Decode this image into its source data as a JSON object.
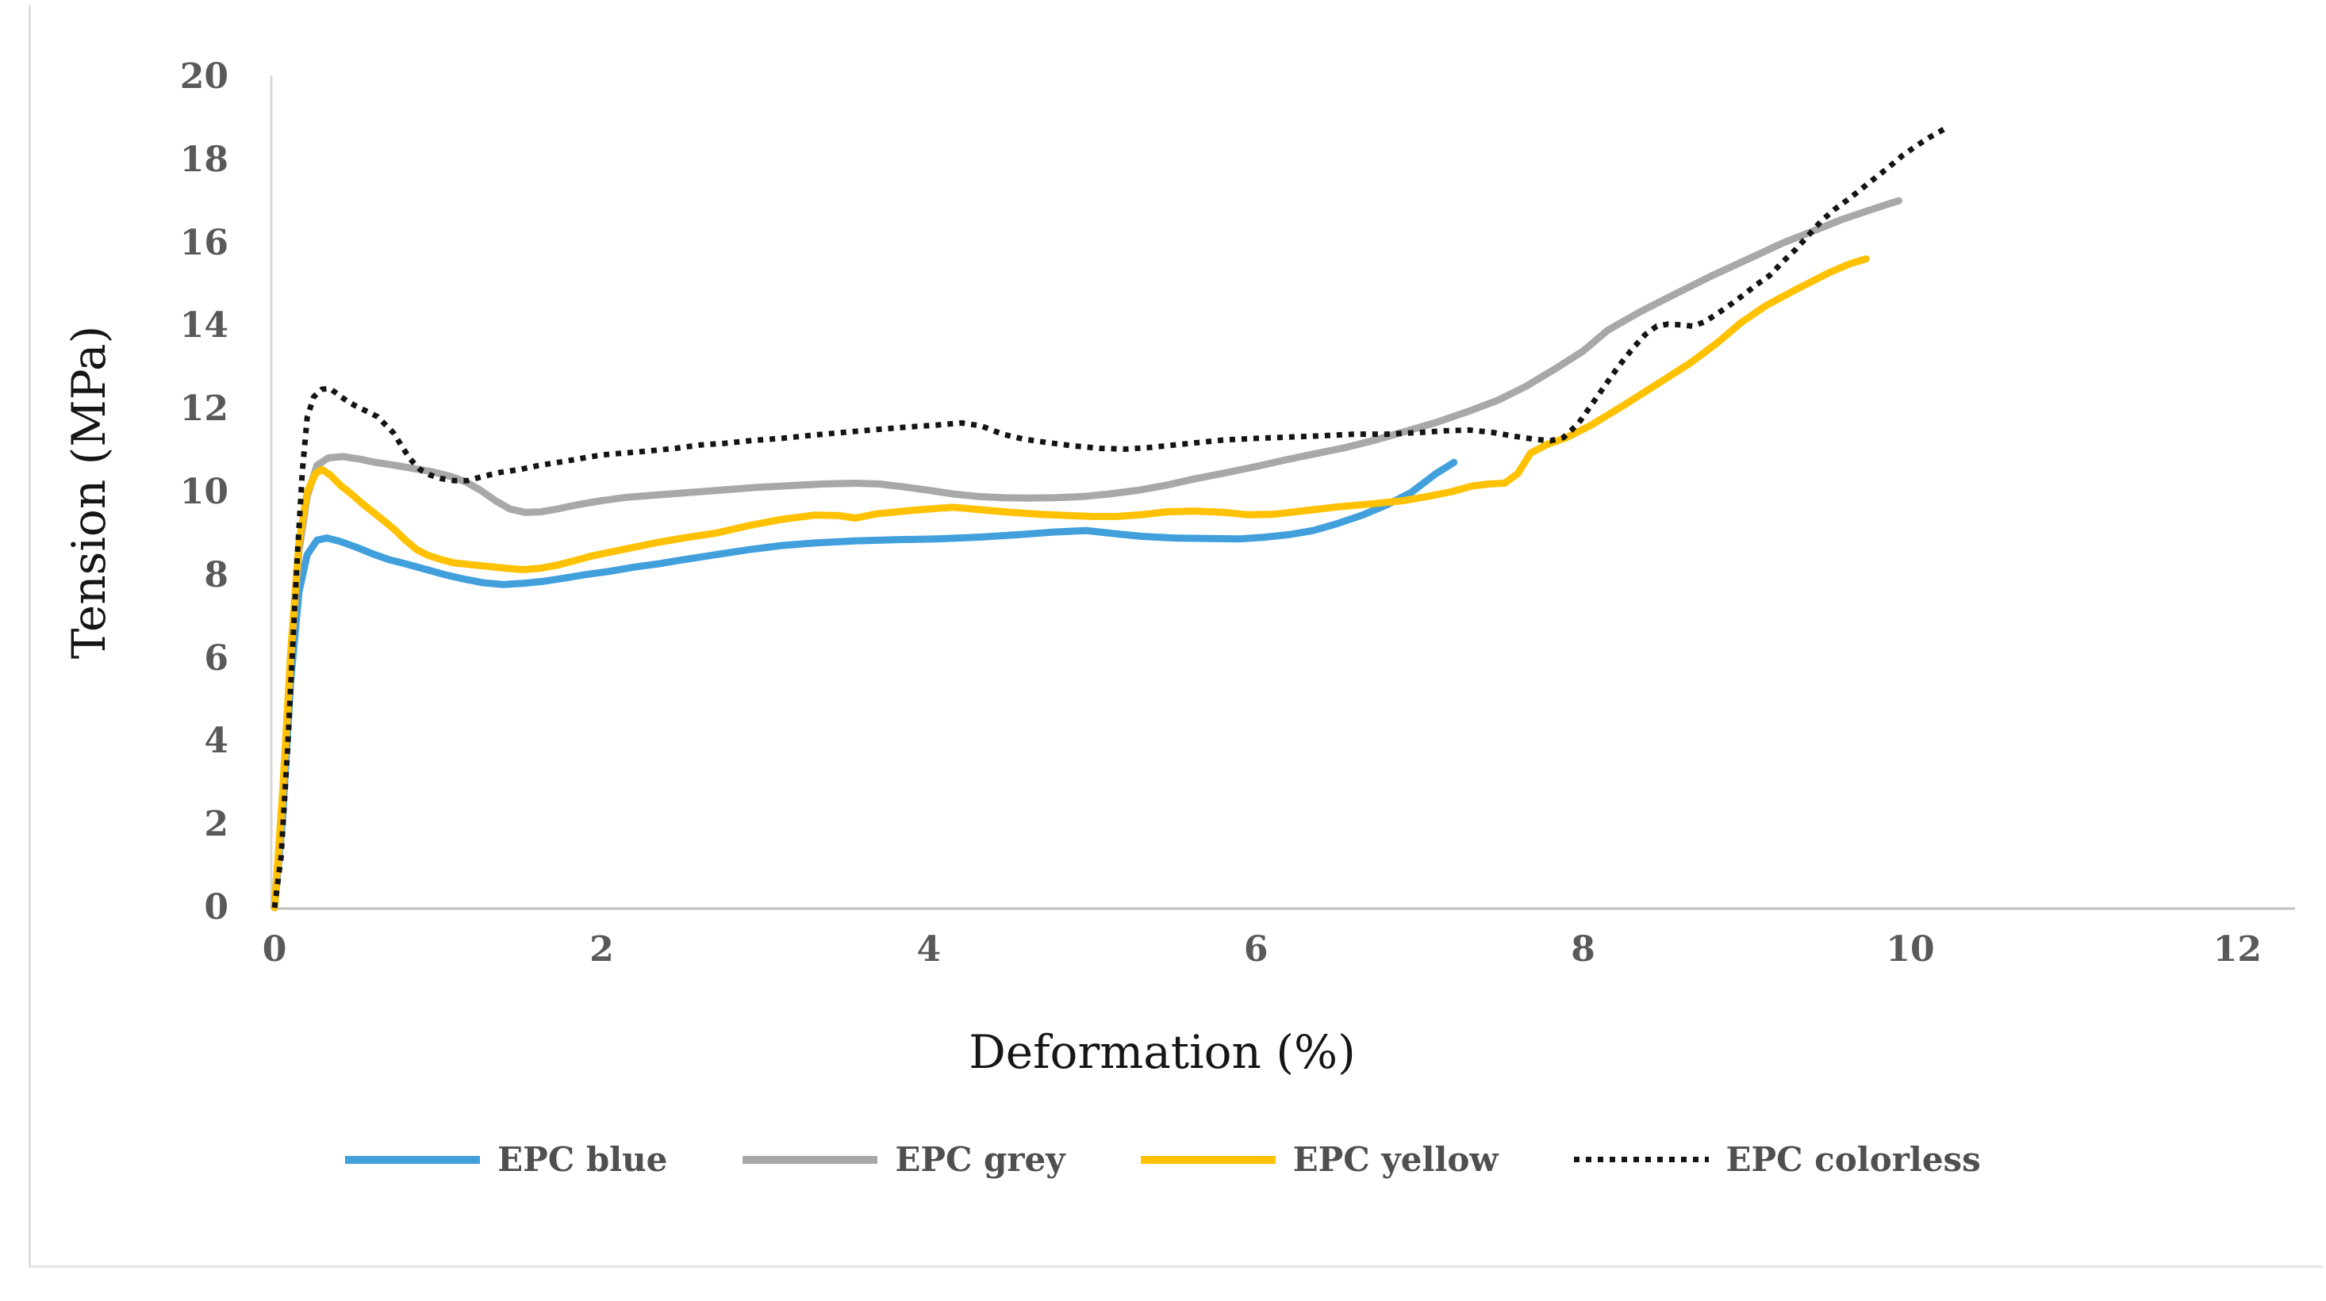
{
  "page": {
    "background": "#ffffff",
    "frame_border_color": "#dedede"
  },
  "chart_data": {
    "type": "line",
    "title": "",
    "xlabel": "Deformation (%)",
    "ylabel": "Tension (MPa)",
    "xlim": [
      0,
      12
    ],
    "ylim": [
      0,
      20
    ],
    "xticks": [
      0,
      2,
      4,
      6,
      8,
      10,
      12
    ],
    "yticks": [
      0,
      2,
      4,
      6,
      8,
      10,
      12,
      14,
      16,
      18,
      20
    ],
    "grid": false,
    "legend_position": "bottom-center",
    "axis_line_color_y": "#d9d9d9",
    "axis_line_color_x": "#bfbfbf",
    "tick_label_color": "#595959",
    "series": [
      {
        "name": "EPC blue",
        "color": "#41A0DC",
        "style": "solid",
        "points": [
          [
            0,
            0
          ],
          [
            0.05,
            2.2
          ],
          [
            0.1,
            5.5
          ],
          [
            0.15,
            7.6
          ],
          [
            0.2,
            8.5
          ],
          [
            0.26,
            8.85
          ],
          [
            0.32,
            8.9
          ],
          [
            0.4,
            8.82
          ],
          [
            0.5,
            8.68
          ],
          [
            0.6,
            8.52
          ],
          [
            0.7,
            8.38
          ],
          [
            0.8,
            8.28
          ],
          [
            0.92,
            8.15
          ],
          [
            1.04,
            8.02
          ],
          [
            1.15,
            7.92
          ],
          [
            1.28,
            7.82
          ],
          [
            1.4,
            7.78
          ],
          [
            1.52,
            7.81
          ],
          [
            1.65,
            7.86
          ],
          [
            1.78,
            7.94
          ],
          [
            1.9,
            8.02
          ],
          [
            2.05,
            8.1
          ],
          [
            2.2,
            8.2
          ],
          [
            2.35,
            8.28
          ],
          [
            2.5,
            8.38
          ],
          [
            2.7,
            8.5
          ],
          [
            2.9,
            8.62
          ],
          [
            3.1,
            8.72
          ],
          [
            3.3,
            8.78
          ],
          [
            3.55,
            8.83
          ],
          [
            3.8,
            8.86
          ],
          [
            4.05,
            8.88
          ],
          [
            4.3,
            8.92
          ],
          [
            4.55,
            8.98
          ],
          [
            4.75,
            9.04
          ],
          [
            4.96,
            9.08
          ],
          [
            5.15,
            9.0
          ],
          [
            5.3,
            8.94
          ],
          [
            5.5,
            8.9
          ],
          [
            5.7,
            8.89
          ],
          [
            5.9,
            8.88
          ],
          [
            6.05,
            8.92
          ],
          [
            6.2,
            8.98
          ],
          [
            6.35,
            9.08
          ],
          [
            6.5,
            9.25
          ],
          [
            6.65,
            9.45
          ],
          [
            6.8,
            9.7
          ],
          [
            6.95,
            10.0
          ],
          [
            7.1,
            10.45
          ],
          [
            7.21,
            10.72
          ]
        ]
      },
      {
        "name": "EPC grey",
        "color": "#A8A8A8",
        "style": "solid",
        "points": [
          [
            0,
            0
          ],
          [
            0.05,
            2.5
          ],
          [
            0.1,
            6.0
          ],
          [
            0.15,
            8.6
          ],
          [
            0.2,
            9.9
          ],
          [
            0.26,
            10.65
          ],
          [
            0.33,
            10.83
          ],
          [
            0.42,
            10.86
          ],
          [
            0.52,
            10.8
          ],
          [
            0.62,
            10.72
          ],
          [
            0.72,
            10.66
          ],
          [
            0.84,
            10.58
          ],
          [
            0.96,
            10.5
          ],
          [
            1.08,
            10.38
          ],
          [
            1.17,
            10.25
          ],
          [
            1.26,
            10.05
          ],
          [
            1.35,
            9.8
          ],
          [
            1.44,
            9.6
          ],
          [
            1.53,
            9.52
          ],
          [
            1.63,
            9.53
          ],
          [
            1.73,
            9.6
          ],
          [
            1.85,
            9.7
          ],
          [
            2.0,
            9.8
          ],
          [
            2.15,
            9.88
          ],
          [
            2.35,
            9.94
          ],
          [
            2.55,
            10.0
          ],
          [
            2.75,
            10.06
          ],
          [
            2.95,
            10.12
          ],
          [
            3.15,
            10.16
          ],
          [
            3.35,
            10.2
          ],
          [
            3.55,
            10.22
          ],
          [
            3.7,
            10.2
          ],
          [
            3.85,
            10.13
          ],
          [
            4.0,
            10.05
          ],
          [
            4.15,
            9.96
          ],
          [
            4.3,
            9.9
          ],
          [
            4.45,
            9.87
          ],
          [
            4.6,
            9.86
          ],
          [
            4.78,
            9.87
          ],
          [
            4.95,
            9.9
          ],
          [
            5.1,
            9.96
          ],
          [
            5.28,
            10.05
          ],
          [
            5.45,
            10.17
          ],
          [
            5.62,
            10.32
          ],
          [
            5.8,
            10.46
          ],
          [
            6.0,
            10.62
          ],
          [
            6.18,
            10.78
          ],
          [
            6.35,
            10.92
          ],
          [
            6.55,
            11.08
          ],
          [
            6.72,
            11.25
          ],
          [
            6.9,
            11.45
          ],
          [
            7.1,
            11.68
          ],
          [
            7.3,
            11.95
          ],
          [
            7.48,
            12.22
          ],
          [
            7.65,
            12.55
          ],
          [
            7.82,
            12.95
          ],
          [
            8.0,
            13.4
          ],
          [
            8.15,
            13.9
          ],
          [
            8.35,
            14.35
          ],
          [
            8.55,
            14.75
          ],
          [
            8.78,
            15.2
          ],
          [
            9.0,
            15.6
          ],
          [
            9.22,
            16.0
          ],
          [
            9.4,
            16.28
          ],
          [
            9.57,
            16.55
          ],
          [
            9.72,
            16.75
          ],
          [
            9.85,
            16.92
          ],
          [
            9.93,
            17.02
          ]
        ]
      },
      {
        "name": "EPC yellow",
        "color": "#FFC100",
        "style": "solid",
        "points": [
          [
            0,
            0
          ],
          [
            0.05,
            2.8
          ],
          [
            0.1,
            6.2
          ],
          [
            0.15,
            8.8
          ],
          [
            0.2,
            10.0
          ],
          [
            0.25,
            10.45
          ],
          [
            0.29,
            10.55
          ],
          [
            0.34,
            10.42
          ],
          [
            0.4,
            10.18
          ],
          [
            0.47,
            9.96
          ],
          [
            0.54,
            9.72
          ],
          [
            0.61,
            9.5
          ],
          [
            0.68,
            9.28
          ],
          [
            0.74,
            9.08
          ],
          [
            0.8,
            8.85
          ],
          [
            0.87,
            8.62
          ],
          [
            0.94,
            8.48
          ],
          [
            1.02,
            8.38
          ],
          [
            1.1,
            8.3
          ],
          [
            1.2,
            8.26
          ],
          [
            1.3,
            8.22
          ],
          [
            1.42,
            8.17
          ],
          [
            1.52,
            8.14
          ],
          [
            1.62,
            8.17
          ],
          [
            1.72,
            8.24
          ],
          [
            1.83,
            8.35
          ],
          [
            1.93,
            8.46
          ],
          [
            2.05,
            8.56
          ],
          [
            2.2,
            8.68
          ],
          [
            2.35,
            8.8
          ],
          [
            2.5,
            8.9
          ],
          [
            2.7,
            9.02
          ],
          [
            2.9,
            9.2
          ],
          [
            3.1,
            9.35
          ],
          [
            3.3,
            9.45
          ],
          [
            3.45,
            9.44
          ],
          [
            3.55,
            9.38
          ],
          [
            3.68,
            9.48
          ],
          [
            3.85,
            9.55
          ],
          [
            4.0,
            9.6
          ],
          [
            4.15,
            9.64
          ],
          [
            4.32,
            9.58
          ],
          [
            4.5,
            9.52
          ],
          [
            4.68,
            9.47
          ],
          [
            4.85,
            9.44
          ],
          [
            5.0,
            9.42
          ],
          [
            5.15,
            9.42
          ],
          [
            5.3,
            9.46
          ],
          [
            5.45,
            9.53
          ],
          [
            5.62,
            9.55
          ],
          [
            5.8,
            9.52
          ],
          [
            5.95,
            9.46
          ],
          [
            6.1,
            9.47
          ],
          [
            6.3,
            9.56
          ],
          [
            6.5,
            9.65
          ],
          [
            6.7,
            9.72
          ],
          [
            6.9,
            9.8
          ],
          [
            7.05,
            9.9
          ],
          [
            7.2,
            10.02
          ],
          [
            7.32,
            10.15
          ],
          [
            7.42,
            10.2
          ],
          [
            7.52,
            10.22
          ],
          [
            7.6,
            10.45
          ],
          [
            7.68,
            10.95
          ],
          [
            7.78,
            11.15
          ],
          [
            7.9,
            11.32
          ],
          [
            8.05,
            11.62
          ],
          [
            8.25,
            12.1
          ],
          [
            8.45,
            12.6
          ],
          [
            8.65,
            13.1
          ],
          [
            8.82,
            13.6
          ],
          [
            8.97,
            14.1
          ],
          [
            9.12,
            14.5
          ],
          [
            9.3,
            14.88
          ],
          [
            9.5,
            15.28
          ],
          [
            9.63,
            15.5
          ],
          [
            9.73,
            15.62
          ]
        ]
      },
      {
        "name": "EPC colorless",
        "color": "#141414",
        "style": "dotted",
        "points": [
          [
            0,
            0
          ],
          [
            0.04,
            1.2
          ],
          [
            0.08,
            3.8
          ],
          [
            0.11,
            6.2
          ],
          [
            0.14,
            8.5
          ],
          [
            0.17,
            10.5
          ],
          [
            0.2,
            11.8
          ],
          [
            0.24,
            12.3
          ],
          [
            0.29,
            12.48
          ],
          [
            0.34,
            12.5
          ],
          [
            0.39,
            12.35
          ],
          [
            0.45,
            12.18
          ],
          [
            0.51,
            12.05
          ],
          [
            0.57,
            11.94
          ],
          [
            0.63,
            11.82
          ],
          [
            0.68,
            11.62
          ],
          [
            0.73,
            11.42
          ],
          [
            0.78,
            11.1
          ],
          [
            0.83,
            10.8
          ],
          [
            0.89,
            10.55
          ],
          [
            0.95,
            10.42
          ],
          [
            1.02,
            10.33
          ],
          [
            1.1,
            10.28
          ],
          [
            1.18,
            10.28
          ],
          [
            1.27,
            10.38
          ],
          [
            1.38,
            10.48
          ],
          [
            1.5,
            10.55
          ],
          [
            1.62,
            10.65
          ],
          [
            1.75,
            10.73
          ],
          [
            1.88,
            10.82
          ],
          [
            2.0,
            10.9
          ],
          [
            2.15,
            10.95
          ],
          [
            2.3,
            11.0
          ],
          [
            2.45,
            11.06
          ],
          [
            2.6,
            11.14
          ],
          [
            2.75,
            11.18
          ],
          [
            2.9,
            11.24
          ],
          [
            3.1,
            11.3
          ],
          [
            3.3,
            11.38
          ],
          [
            3.5,
            11.45
          ],
          [
            3.7,
            11.52
          ],
          [
            3.9,
            11.58
          ],
          [
            4.05,
            11.62
          ],
          [
            4.2,
            11.67
          ],
          [
            4.32,
            11.6
          ],
          [
            4.45,
            11.4
          ],
          [
            4.58,
            11.28
          ],
          [
            4.72,
            11.2
          ],
          [
            4.88,
            11.12
          ],
          [
            5.05,
            11.06
          ],
          [
            5.2,
            11.04
          ],
          [
            5.35,
            11.08
          ],
          [
            5.5,
            11.14
          ],
          [
            5.65,
            11.2
          ],
          [
            5.8,
            11.26
          ],
          [
            6.0,
            11.3
          ],
          [
            6.2,
            11.33
          ],
          [
            6.4,
            11.36
          ],
          [
            6.6,
            11.4
          ],
          [
            6.8,
            11.4
          ],
          [
            7.0,
            11.44
          ],
          [
            7.15,
            11.48
          ],
          [
            7.3,
            11.5
          ],
          [
            7.45,
            11.44
          ],
          [
            7.58,
            11.35
          ],
          [
            7.7,
            11.28
          ],
          [
            7.8,
            11.24
          ],
          [
            7.88,
            11.32
          ],
          [
            7.97,
            11.65
          ],
          [
            8.05,
            12.1
          ],
          [
            8.13,
            12.55
          ],
          [
            8.21,
            13.0
          ],
          [
            8.3,
            13.45
          ],
          [
            8.38,
            13.8
          ],
          [
            8.45,
            14.0
          ],
          [
            8.52,
            14.05
          ],
          [
            8.6,
            14.03
          ],
          [
            8.67,
            14.0
          ],
          [
            8.74,
            14.1
          ],
          [
            8.82,
            14.3
          ],
          [
            8.9,
            14.52
          ],
          [
            8.98,
            14.75
          ],
          [
            9.06,
            15.0
          ],
          [
            9.14,
            15.22
          ],
          [
            9.22,
            15.55
          ],
          [
            9.3,
            15.85
          ],
          [
            9.38,
            16.2
          ],
          [
            9.46,
            16.55
          ],
          [
            9.54,
            16.82
          ],
          [
            9.62,
            17.05
          ],
          [
            9.7,
            17.3
          ],
          [
            9.78,
            17.55
          ],
          [
            9.86,
            17.8
          ],
          [
            9.95,
            18.1
          ],
          [
            10.04,
            18.35
          ],
          [
            10.12,
            18.55
          ],
          [
            10.21,
            18.75
          ]
        ]
      }
    ]
  }
}
